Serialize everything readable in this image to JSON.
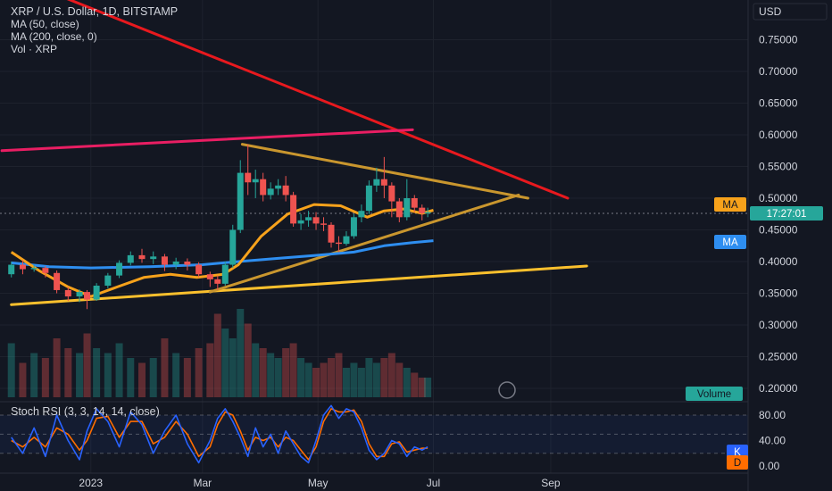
{
  "header": {
    "title": "XRP / U.S. Dollar, 1D, BITSTAMP",
    "ma50": "MA (50, close)",
    "ma200": "MA (200, close, 0)",
    "vol": "Vol · XRP",
    "currency": "USD"
  },
  "rsi_header": "Stoch RSI (3, 3, 14, 14, close)",
  "badges": {
    "ma_orange": "MA",
    "countdown": "17:27:01",
    "ma_blue": "MA",
    "volume": "Volume",
    "k": "K",
    "d": "D"
  },
  "colors": {
    "background": "#131722",
    "ma50": "#f7a21b",
    "ma200": "#2e8ef0",
    "up": "#26a69a",
    "down": "#ef5350",
    "stoch_k": "#2962ff",
    "stoch_d": "#ff6d00",
    "trend_red": "#e8191e",
    "trend_pink": "#e91e63",
    "trend_yellow": "#fbc02d",
    "triangle": "#c9962e"
  },
  "chart_data": {
    "type": "candlestick",
    "price_axis": {
      "ticks": [
        "0.75000",
        "0.70000",
        "0.65000",
        "0.60000",
        "0.55000",
        "0.50000",
        "0.45000",
        "0.40000",
        "0.35000",
        "0.30000",
        "0.25000",
        "0.20000"
      ],
      "range": [
        0.18,
        0.8
      ],
      "current_price": 0.476
    },
    "x_ticks": [
      "2023",
      "Mar",
      "May",
      "Jul",
      "Sep"
    ],
    "rsi_axis": {
      "ticks": [
        "80.00",
        "40.00",
        "0.00"
      ],
      "range": [
        0,
        100
      ],
      "bands": [
        80,
        20
      ]
    },
    "ma50_series": [
      [
        "2022-11-20",
        0.415
      ],
      [
        "2022-12-05",
        0.385
      ],
      [
        "2022-12-20",
        0.36
      ],
      [
        "2023-01-01",
        0.345
      ],
      [
        "2023-01-15",
        0.36
      ],
      [
        "2023-01-29",
        0.375
      ],
      [
        "2023-02-12",
        0.38
      ],
      [
        "2023-02-26",
        0.375
      ],
      [
        "2023-03-12",
        0.38
      ],
      [
        "2023-03-20",
        0.395
      ],
      [
        "2023-04-01",
        0.44
      ],
      [
        "2023-04-15",
        0.475
      ],
      [
        "2023-04-29",
        0.49
      ],
      [
        "2023-05-13",
        0.488
      ],
      [
        "2023-05-27",
        0.47
      ],
      [
        "2023-06-05",
        0.48
      ],
      [
        "2023-06-15",
        0.483
      ],
      [
        "2023-06-25",
        0.476
      ],
      [
        "2023-07-01",
        0.481
      ]
    ],
    "ma200_series": [
      [
        "2022-11-20",
        0.398
      ],
      [
        "2022-12-10",
        0.392
      ],
      [
        "2023-01-01",
        0.39
      ],
      [
        "2023-02-01",
        0.392
      ],
      [
        "2023-03-01",
        0.395
      ],
      [
        "2023-03-20",
        0.4
      ],
      [
        "2023-04-10",
        0.405
      ],
      [
        "2023-05-01",
        0.41
      ],
      [
        "2023-05-20",
        0.415
      ],
      [
        "2023-06-05",
        0.425
      ],
      [
        "2023-06-20",
        0.43
      ],
      [
        "2023-07-01",
        0.433
      ]
    ],
    "candles": [
      [
        "2022-11-20",
        0.38,
        0.395,
        0.375,
        0.4
      ],
      [
        "2022-11-26",
        0.395,
        0.388,
        0.38,
        0.402
      ],
      [
        "2022-12-02",
        0.388,
        0.39,
        0.384,
        0.395
      ],
      [
        "2022-12-08",
        0.39,
        0.382,
        0.375,
        0.393
      ],
      [
        "2022-12-14",
        0.382,
        0.355,
        0.35,
        0.386
      ],
      [
        "2022-12-20",
        0.355,
        0.345,
        0.338,
        0.36
      ],
      [
        "2022-12-26",
        0.345,
        0.352,
        0.336,
        0.356
      ],
      [
        "2022-12-30",
        0.352,
        0.34,
        0.325,
        0.355
      ],
      [
        "2023-01-04",
        0.34,
        0.362,
        0.338,
        0.366
      ],
      [
        "2023-01-10",
        0.362,
        0.378,
        0.358,
        0.382
      ],
      [
        "2023-01-16",
        0.378,
        0.398,
        0.374,
        0.402
      ],
      [
        "2023-01-22",
        0.398,
        0.41,
        0.394,
        0.416
      ],
      [
        "2023-01-28",
        0.41,
        0.404,
        0.398,
        0.42
      ],
      [
        "2023-02-03",
        0.404,
        0.408,
        0.396,
        0.416
      ],
      [
        "2023-02-09",
        0.408,
        0.395,
        0.385,
        0.412
      ],
      [
        "2023-02-15",
        0.395,
        0.4,
        0.388,
        0.406
      ],
      [
        "2023-02-21",
        0.4,
        0.395,
        0.386,
        0.405
      ],
      [
        "2023-02-27",
        0.395,
        0.38,
        0.375,
        0.399
      ],
      [
        "2023-03-05",
        0.38,
        0.372,
        0.36,
        0.384
      ],
      [
        "2023-03-09",
        0.372,
        0.365,
        0.355,
        0.378
      ],
      [
        "2023-03-13",
        0.365,
        0.395,
        0.362,
        0.4
      ],
      [
        "2023-03-17",
        0.395,
        0.45,
        0.39,
        0.458
      ],
      [
        "2023-03-21",
        0.45,
        0.54,
        0.445,
        0.56
      ],
      [
        "2023-03-25",
        0.54,
        0.525,
        0.505,
        0.585
      ],
      [
        "2023-03-29",
        0.525,
        0.53,
        0.5,
        0.545
      ],
      [
        "2023-04-02",
        0.53,
        0.505,
        0.495,
        0.54
      ],
      [
        "2023-04-06",
        0.505,
        0.515,
        0.498,
        0.525
      ],
      [
        "2023-04-10",
        0.515,
        0.52,
        0.505,
        0.53
      ],
      [
        "2023-04-14",
        0.52,
        0.505,
        0.495,
        0.535
      ],
      [
        "2023-04-18",
        0.505,
        0.46,
        0.455,
        0.51
      ],
      [
        "2023-04-22",
        0.46,
        0.465,
        0.45,
        0.475
      ],
      [
        "2023-04-26",
        0.465,
        0.47,
        0.455,
        0.48
      ],
      [
        "2023-04-30",
        0.47,
        0.46,
        0.45,
        0.478
      ],
      [
        "2023-05-04",
        0.46,
        0.458,
        0.448,
        0.47
      ],
      [
        "2023-05-08",
        0.458,
        0.43,
        0.422,
        0.462
      ],
      [
        "2023-05-12",
        0.43,
        0.428,
        0.415,
        0.44
      ],
      [
        "2023-05-16",
        0.428,
        0.44,
        0.425,
        0.448
      ],
      [
        "2023-05-20",
        0.44,
        0.47,
        0.436,
        0.475
      ],
      [
        "2023-05-24",
        0.47,
        0.48,
        0.462,
        0.49
      ],
      [
        "2023-05-28",
        0.48,
        0.52,
        0.475,
        0.528
      ],
      [
        "2023-06-01",
        0.52,
        0.53,
        0.51,
        0.548
      ],
      [
        "2023-06-05",
        0.53,
        0.52,
        0.5,
        0.565
      ],
      [
        "2023-06-09",
        0.52,
        0.495,
        0.47,
        0.525
      ],
      [
        "2023-06-13",
        0.495,
        0.47,
        0.462,
        0.5
      ],
      [
        "2023-06-17",
        0.47,
        0.5,
        0.465,
        0.53
      ],
      [
        "2023-06-21",
        0.5,
        0.485,
        0.478,
        0.505
      ],
      [
        "2023-06-25",
        0.485,
        0.476,
        0.465,
        0.49
      ],
      [
        "2023-06-28",
        0.476,
        0.478,
        0.47,
        0.485
      ]
    ],
    "volumes": [
      [
        "2022-11-20",
        0.55
      ],
      [
        "2022-11-26",
        0.35
      ],
      [
        "2022-12-02",
        0.45
      ],
      [
        "2022-12-08",
        0.4
      ],
      [
        "2022-12-14",
        0.6
      ],
      [
        "2022-12-20",
        0.5
      ],
      [
        "2022-12-26",
        0.45
      ],
      [
        "2022-12-30",
        0.65
      ],
      [
        "2023-01-04",
        0.5
      ],
      [
        "2023-01-10",
        0.45
      ],
      [
        "2023-01-16",
        0.55
      ],
      [
        "2023-01-22",
        0.4
      ],
      [
        "2023-01-28",
        0.35
      ],
      [
        "2023-02-03",
        0.4
      ],
      [
        "2023-02-09",
        0.6
      ],
      [
        "2023-02-15",
        0.45
      ],
      [
        "2023-02-21",
        0.4
      ],
      [
        "2023-02-27",
        0.5
      ],
      [
        "2023-03-05",
        0.55
      ],
      [
        "2023-03-09",
        0.85
      ],
      [
        "2023-03-13",
        0.7
      ],
      [
        "2023-03-17",
        0.6
      ],
      [
        "2023-03-21",
        0.9
      ],
      [
        "2023-03-25",
        0.75
      ],
      [
        "2023-03-29",
        0.55
      ],
      [
        "2023-04-02",
        0.5
      ],
      [
        "2023-04-06",
        0.45
      ],
      [
        "2023-04-10",
        0.4
      ],
      [
        "2023-04-14",
        0.5
      ],
      [
        "2023-04-18",
        0.55
      ],
      [
        "2023-04-22",
        0.4
      ],
      [
        "2023-04-26",
        0.35
      ],
      [
        "2023-04-30",
        0.3
      ],
      [
        "2023-05-04",
        0.35
      ],
      [
        "2023-05-08",
        0.4
      ],
      [
        "2023-05-12",
        0.45
      ],
      [
        "2023-05-16",
        0.3
      ],
      [
        "2023-05-20",
        0.35
      ],
      [
        "2023-05-24",
        0.3
      ],
      [
        "2023-05-28",
        0.4
      ],
      [
        "2023-06-01",
        0.35
      ],
      [
        "2023-06-05",
        0.4
      ],
      [
        "2023-06-09",
        0.45
      ],
      [
        "2023-06-13",
        0.35
      ],
      [
        "2023-06-17",
        0.3
      ],
      [
        "2023-06-21",
        0.25
      ],
      [
        "2023-06-25",
        0.2
      ],
      [
        "2023-06-28",
        0.2
      ]
    ],
    "stoch_k": [
      [
        "2022-11-20",
        45
      ],
      [
        "2022-11-26",
        20
      ],
      [
        "2022-12-02",
        60
      ],
      [
        "2022-12-08",
        15
      ],
      [
        "2022-12-14",
        80
      ],
      [
        "2022-12-20",
        40
      ],
      [
        "2022-12-26",
        10
      ],
      [
        "2022-12-30",
        55
      ],
      [
        "2023-01-04",
        90
      ],
      [
        "2023-01-10",
        70
      ],
      [
        "2023-01-16",
        30
      ],
      [
        "2023-01-22",
        85
      ],
      [
        "2023-01-28",
        65
      ],
      [
        "2023-02-03",
        20
      ],
      [
        "2023-02-09",
        55
      ],
      [
        "2023-02-15",
        80
      ],
      [
        "2023-02-21",
        35
      ],
      [
        "2023-02-27",
        5
      ],
      [
        "2023-03-05",
        40
      ],
      [
        "2023-03-09",
        75
      ],
      [
        "2023-03-13",
        90
      ],
      [
        "2023-03-17",
        70
      ],
      [
        "2023-03-21",
        45
      ],
      [
        "2023-03-25",
        15
      ],
      [
        "2023-03-29",
        60
      ],
      [
        "2023-04-02",
        30
      ],
      [
        "2023-04-06",
        50
      ],
      [
        "2023-04-10",
        20
      ],
      [
        "2023-04-14",
        55
      ],
      [
        "2023-04-18",
        35
      ],
      [
        "2023-04-22",
        15
      ],
      [
        "2023-04-26",
        5
      ],
      [
        "2023-04-30",
        40
      ],
      [
        "2023-05-04",
        80
      ],
      [
        "2023-05-08",
        95
      ],
      [
        "2023-05-12",
        75
      ],
      [
        "2023-05-16",
        90
      ],
      [
        "2023-05-20",
        85
      ],
      [
        "2023-05-24",
        60
      ],
      [
        "2023-05-28",
        25
      ],
      [
        "2023-06-01",
        10
      ],
      [
        "2023-06-05",
        20
      ],
      [
        "2023-06-09",
        40
      ],
      [
        "2023-06-13",
        35
      ],
      [
        "2023-06-17",
        15
      ],
      [
        "2023-06-21",
        30
      ],
      [
        "2023-06-25",
        25
      ],
      [
        "2023-06-28",
        30
      ]
    ],
    "stoch_d": [
      [
        "2022-11-20",
        40
      ],
      [
        "2022-11-26",
        30
      ],
      [
        "2022-12-02",
        45
      ],
      [
        "2022-12-08",
        30
      ],
      [
        "2022-12-14",
        60
      ],
      [
        "2022-12-20",
        50
      ],
      [
        "2022-12-26",
        25
      ],
      [
        "2022-12-30",
        40
      ],
      [
        "2023-01-04",
        75
      ],
      [
        "2023-01-10",
        78
      ],
      [
        "2023-01-16",
        45
      ],
      [
        "2023-01-22",
        70
      ],
      [
        "2023-01-28",
        70
      ],
      [
        "2023-02-03",
        35
      ],
      [
        "2023-02-09",
        45
      ],
      [
        "2023-02-15",
        70
      ],
      [
        "2023-02-21",
        50
      ],
      [
        "2023-02-27",
        15
      ],
      [
        "2023-03-05",
        30
      ],
      [
        "2023-03-09",
        65
      ],
      [
        "2023-03-13",
        85
      ],
      [
        "2023-03-17",
        80
      ],
      [
        "2023-03-21",
        55
      ],
      [
        "2023-03-25",
        25
      ],
      [
        "2023-03-29",
        45
      ],
      [
        "2023-04-02",
        40
      ],
      [
        "2023-04-06",
        45
      ],
      [
        "2023-04-10",
        30
      ],
      [
        "2023-04-14",
        45
      ],
      [
        "2023-04-18",
        40
      ],
      [
        "2023-04-22",
        25
      ],
      [
        "2023-04-26",
        10
      ],
      [
        "2023-04-30",
        30
      ],
      [
        "2023-05-04",
        70
      ],
      [
        "2023-05-08",
        90
      ],
      [
        "2023-05-12",
        85
      ],
      [
        "2023-05-16",
        85
      ],
      [
        "2023-05-20",
        88
      ],
      [
        "2023-05-24",
        70
      ],
      [
        "2023-05-28",
        35
      ],
      [
        "2023-06-01",
        15
      ],
      [
        "2023-06-05",
        15
      ],
      [
        "2023-06-09",
        35
      ],
      [
        "2023-06-13",
        38
      ],
      [
        "2023-06-17",
        22
      ],
      [
        "2023-06-21",
        25
      ],
      [
        "2023-06-25",
        28
      ],
      [
        "2023-06-28",
        28
      ]
    ],
    "drawings": {
      "red_trendline": {
        "from": [
          "2022-12-15",
          0.82
        ],
        "to": [
          "2023-09-10",
          0.5
        ]
      },
      "pink_trendline": {
        "from": [
          "2022-11-15",
          0.575
        ],
        "to": [
          "2023-06-20",
          0.608
        ]
      },
      "yellow_support": {
        "from": [
          "2022-11-20",
          0.332
        ],
        "to": [
          "2023-09-20",
          0.393
        ]
      },
      "triangle_upper": {
        "from": [
          "2023-03-22",
          0.585
        ],
        "to": [
          "2023-08-20",
          0.5
        ]
      },
      "triangle_lower": {
        "from": [
          "2023-03-05",
          0.352
        ],
        "to": [
          "2023-08-15",
          0.505
        ]
      }
    }
  }
}
